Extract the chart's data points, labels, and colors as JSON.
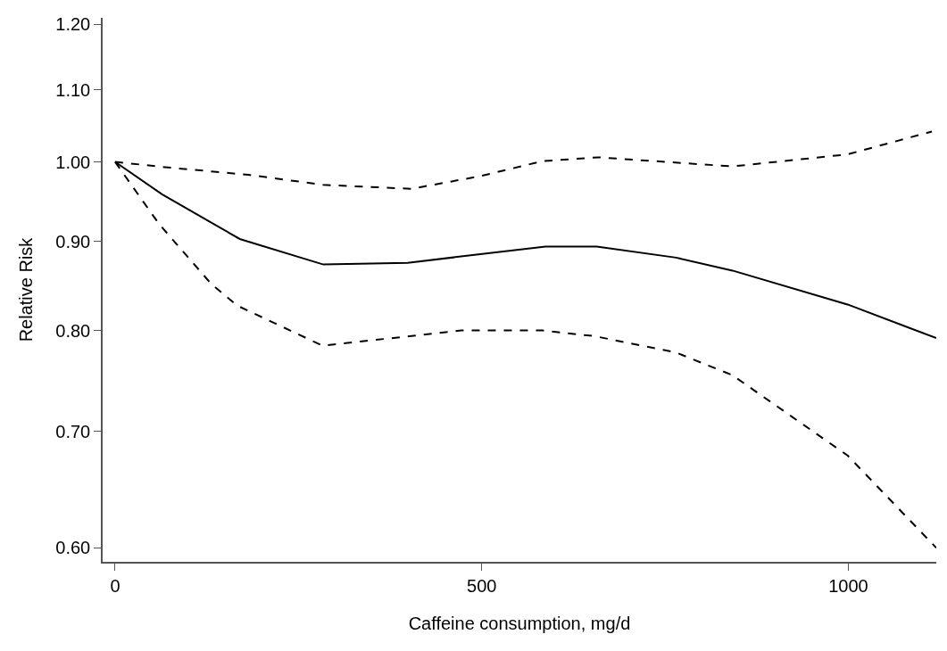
{
  "chart_data": {
    "type": "line",
    "xlabel": "Caffeine consumption, mg/d",
    "ylabel": "Relative Risk",
    "log": "y",
    "marker": "none",
    "xlim": [
      -17,
      1120
    ],
    "xticks": [
      0,
      500,
      1000
    ],
    "ylim": [
      0.589,
      1.21
    ],
    "yticks": [
      {
        "value": 0.6,
        "label": "0.60"
      },
      {
        "value": 0.7,
        "label": "0.70"
      },
      {
        "value": 0.8,
        "label": "0.80"
      },
      {
        "value": 0.9,
        "label": "0.90"
      },
      {
        "value": 1.0,
        "label": "1.00"
      },
      {
        "value": 1.1,
        "label": "1.10"
      },
      {
        "value": 1.2,
        "label": "1.20"
      }
    ],
    "series": [
      {
        "color": "#000000",
        "line_style": "solid",
        "x": [
          0,
          64,
          170,
          284,
          399,
          587,
          657,
          765,
          842,
          999,
          1120
        ],
        "values": [
          1.0,
          0.958,
          0.903,
          0.873,
          0.875,
          0.894,
          0.894,
          0.881,
          0.866,
          0.828,
          0.792
        ]
      },
      {
        "color": "#000000",
        "line_style": "dashed",
        "x": [
          0,
          68,
          182,
          284,
          404,
          497,
          583,
          659,
          842,
          999,
          1114
        ],
        "values": [
          1.0,
          0.993,
          0.983,
          0.97,
          0.965,
          0.981,
          1.001,
          1.006,
          0.994,
          1.01,
          1.041
        ]
      },
      {
        "color": "#000000",
        "line_style": "dashed",
        "x": [
          0,
          60,
          131,
          166,
          283,
          472,
          583,
          654,
          765,
          842,
          999,
          1120
        ],
        "values": [
          1.0,
          0.921,
          0.851,
          0.827,
          0.784,
          0.8,
          0.8,
          0.794,
          0.777,
          0.754,
          0.678,
          0.6
        ]
      }
    ]
  }
}
